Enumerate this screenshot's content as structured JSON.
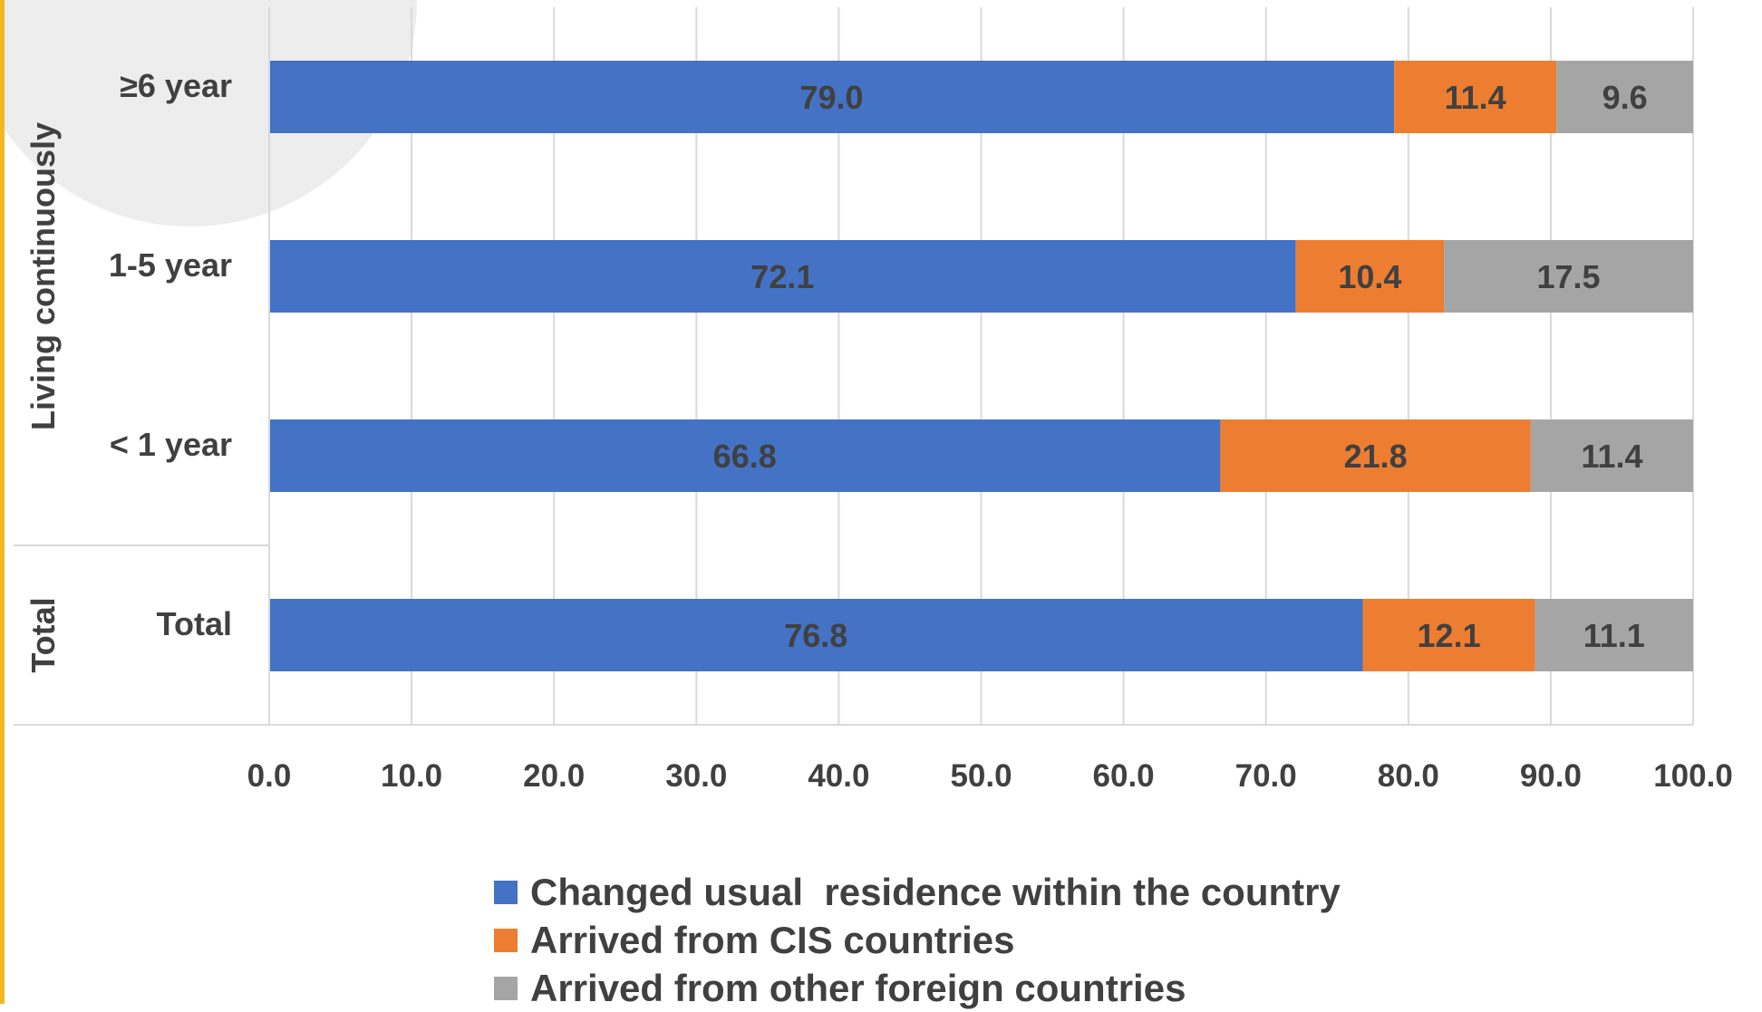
{
  "chart_data": {
    "type": "bar",
    "orientation": "horizontal",
    "stacked": true,
    "categories": [
      "Total",
      "< 1 year",
      "1-5 year",
      "≥6 year"
    ],
    "series": [
      {
        "name": "Changed usual  residence within the country",
        "color": "#4472C4",
        "values": [
          76.8,
          66.8,
          72.1,
          79.0
        ]
      },
      {
        "name": "Arrived from CIS countries",
        "color": "#ED7D31",
        "values": [
          12.1,
          21.8,
          10.4,
          11.4
        ]
      },
      {
        "name": "Arrived from other foreign countries",
        "color": "#A5A5A5",
        "values": [
          11.1,
          11.4,
          17.5,
          9.6
        ]
      }
    ],
    "value_labels": [
      [
        "76.8",
        "66.8",
        "72.1",
        "79.0"
      ],
      [
        "12.1",
        "21.8",
        "10.4",
        "11.4"
      ],
      [
        "11.1",
        "11.4",
        "17.5",
        "9.6"
      ]
    ],
    "group_labels": [
      {
        "label": "Total",
        "categories": [
          "Total"
        ]
      },
      {
        "label": "Living continuously",
        "categories": [
          "< 1 year",
          "1-5 year",
          "≥6 year"
        ]
      }
    ],
    "xlim": [
      0,
      100
    ],
    "x_ticks": [
      "0.0",
      "10.0",
      "20.0",
      "30.0",
      "40.0",
      "50.0",
      "60.0",
      "70.0",
      "80.0",
      "90.0",
      "100.0"
    ],
    "grid": "vertical",
    "legend_position": "bottom"
  }
}
